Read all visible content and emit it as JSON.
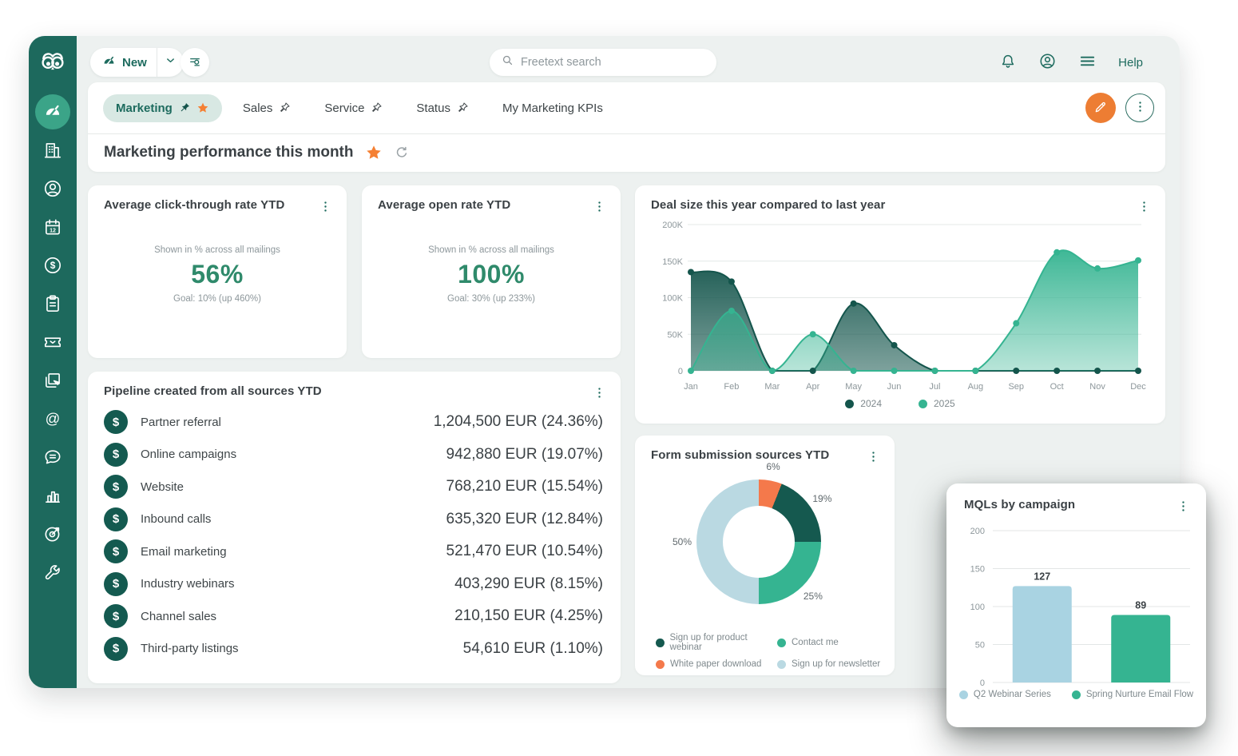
{
  "app": {
    "new_label": "New",
    "search_placeholder": "Freetext search",
    "help_label": "Help"
  },
  "sidebar": {
    "active": "dashboard",
    "items": [
      "dashboard",
      "companies",
      "contacts",
      "diary",
      "sales",
      "projects",
      "tickets",
      "documents",
      "mailings",
      "chat",
      "reports",
      "marketing",
      "settings"
    ]
  },
  "tabs": {
    "items": [
      {
        "label": "Marketing",
        "active": true,
        "pinned": true,
        "starred": true
      },
      {
        "label": "Sales",
        "pin": true
      },
      {
        "label": "Service",
        "pin": true
      },
      {
        "label": "Status",
        "pin": true
      },
      {
        "label": "My Marketing KPIs"
      }
    ]
  },
  "page_header": {
    "title": "Marketing performance this month"
  },
  "kpi_cards": [
    {
      "title": "Average click-through rate YTD",
      "subtitle": "Shown in % across all mailings",
      "value": "56%",
      "goal": "Goal: 10% (up 460%)"
    },
    {
      "title": "Average open rate YTD",
      "subtitle": "Shown in % across all mailings",
      "value": "100%",
      "goal": "Goal: 30% (up 233%)"
    }
  ],
  "pipeline": {
    "title": "Pipeline created from all sources YTD",
    "rows": [
      {
        "label": "Partner referral",
        "value": "1,204,500 EUR (24.36%)"
      },
      {
        "label": "Online campaigns",
        "value": "942,880 EUR (19.07%)"
      },
      {
        "label": "Website",
        "value": "768,210 EUR (15.54%)"
      },
      {
        "label": "Inbound calls",
        "value": "635,320 EUR (12.84%)"
      },
      {
        "label": "Email marketing",
        "value": "521,470 EUR (10.54%)"
      },
      {
        "label": "Industry webinars",
        "value": "403,290 EUR (8.15%)"
      },
      {
        "label": "Channel sales",
        "value": "210,150 EUR (4.25%)"
      },
      {
        "label": "Third-party listings",
        "value": "54,610 EUR (1.10%)"
      }
    ]
  },
  "chart_data": [
    {
      "id": "deal_size",
      "type": "area",
      "title": "Deal size this year compared to last year",
      "x": [
        "Jan",
        "Feb",
        "Mar",
        "Apr",
        "May",
        "Jun",
        "Jul",
        "Aug",
        "Sep",
        "Oct",
        "Nov",
        "Dec"
      ],
      "series": [
        {
          "name": "2024",
          "color": "#14554C",
          "values": [
            135000,
            122000,
            0,
            0,
            92000,
            35000,
            0,
            0,
            0,
            0,
            0,
            0
          ]
        },
        {
          "name": "2025",
          "color": "#35B491",
          "values": [
            0,
            82000,
            0,
            50000,
            0,
            0,
            0,
            0,
            65000,
            162000,
            140000,
            151000
          ]
        }
      ],
      "ylim": [
        0,
        200000
      ],
      "yticks": [
        0,
        50000,
        100000,
        150000,
        200000
      ],
      "ytick_labels": [
        "0",
        "50K",
        "100K",
        "150K",
        "200K"
      ],
      "grid": true,
      "legend_position": "bottom"
    },
    {
      "id": "form_sources",
      "type": "pie",
      "donut": true,
      "title": "Form submission sources YTD",
      "slices": [
        {
          "label": "White paper download",
          "value": 6,
          "color": "#F4794B"
        },
        {
          "label": "Sign up for product webinar",
          "value": 19,
          "color": "#15594F"
        },
        {
          "label": "Contact me",
          "value": 25,
          "color": "#35B491"
        },
        {
          "label": "Sign up for newsletter",
          "value": 50,
          "color": "#BAD9E2"
        }
      ],
      "start_angle_deg": 0,
      "clockwise": true,
      "legend_order": [
        1,
        2,
        0,
        3
      ]
    },
    {
      "id": "mqls",
      "type": "bar",
      "title": "MQLs by campaign",
      "categories": [
        "Q2 Webinar Series",
        "Spring Nurture Email Flow"
      ],
      "values": [
        127,
        89
      ],
      "colors": [
        "#A9D3E2",
        "#35B491"
      ],
      "ylim": [
        0,
        200
      ],
      "yticks": [
        0,
        50,
        100,
        150,
        200
      ],
      "grid": true,
      "legend_position": "bottom"
    }
  ],
  "colors": {
    "brand_teal": "#1D6B5E",
    "sidebar": "#1D695D",
    "sidebar_active": "#3BA488",
    "accent_orange": "#ED7D33",
    "star_orange": "#F58033",
    "kpi_green": "#2F8A6B",
    "series_2024": "#14554C",
    "series_2025": "#35B491",
    "light_blue": "#A9D3E2",
    "app_bg": "#EDF1F0"
  }
}
